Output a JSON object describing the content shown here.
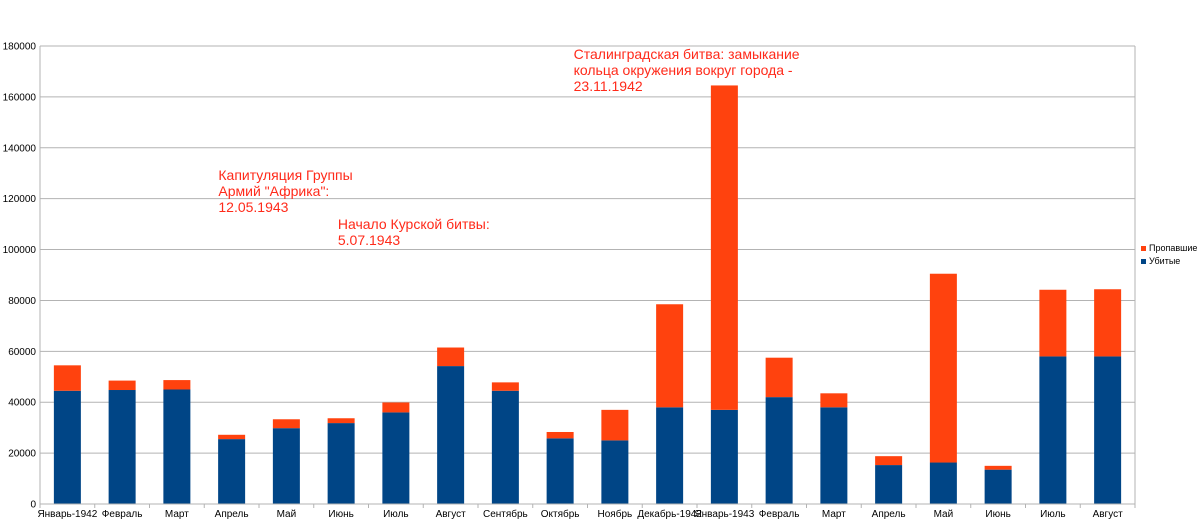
{
  "chart_data": {
    "type": "bar",
    "stacked": true,
    "categories": [
      "Январь-1942",
      "Февраль",
      "Март",
      "Апрель",
      "Май",
      "Июнь",
      "Июль",
      "Август",
      "Сентябрь",
      "Октябрь",
      "Ноябрь",
      "Декабрь-1942",
      "Январь-1943",
      "Февраль",
      "Март",
      "Апрель",
      "Май",
      "Июнь",
      "Июль",
      "Август"
    ],
    "series": [
      {
        "name": "Убитые",
        "color": "#004586",
        "values": [
          44500,
          44800,
          45000,
          25500,
          29800,
          31800,
          36000,
          54200,
          44500,
          25800,
          25000,
          38000,
          37000,
          42000,
          38000,
          15300,
          16300,
          13500,
          58000,
          58000
        ]
      },
      {
        "name": "Пропавшие",
        "color": "#ff420e",
        "values": [
          10000,
          3700,
          3700,
          1700,
          3500,
          1900,
          3900,
          7300,
          3300,
          2500,
          12000,
          40500,
          127500,
          15500,
          5500,
          3500,
          74200,
          1500,
          26200,
          26400
        ]
      }
    ],
    "ylim": [
      0,
      180000
    ],
    "yticks": [
      0,
      20000,
      40000,
      60000,
      80000,
      100000,
      120000,
      140000,
      160000,
      180000
    ],
    "grid": true,
    "legend": "right",
    "annotations": [
      {
        "lines": [
          "Сталинградская битва: замыкание",
          "кольца окружения вокруг города -",
          "23.11.1942"
        ],
        "category": "Декабрь-1942"
      },
      {
        "lines": [
          "Капитуляция Группы",
          "Армий \"Африка\":",
          "12.05.1943"
        ],
        "category": "Май"
      },
      {
        "lines": [
          "Начало Курской битвы:",
          "5.07.1943"
        ],
        "category": "Июль"
      }
    ],
    "annotation_color": "#ff2a1a"
  }
}
